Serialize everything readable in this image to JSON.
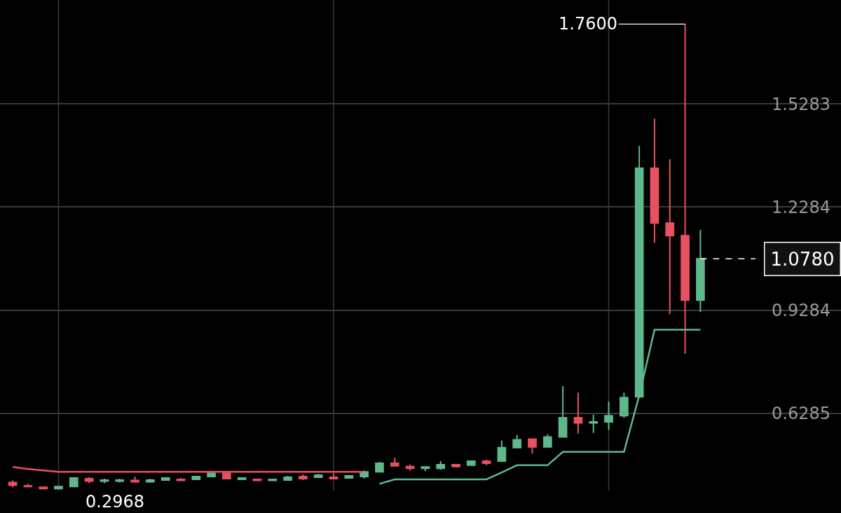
{
  "chart_data": {
    "type": "candlestick",
    "categories": [
      null,
      null,
      null,
      null,
      null,
      null,
      null,
      null,
      null,
      null,
      null,
      null,
      null,
      null,
      null,
      null,
      null,
      null,
      null,
      null,
      null,
      null,
      null,
      null,
      null,
      null,
      null,
      null,
      null,
      null,
      null,
      null,
      null,
      null,
      null,
      null,
      null,
      null,
      null,
      null,
      null,
      null,
      null,
      null,
      null,
      null
    ],
    "ohlc": [
      [
        0.428,
        0.434,
        0.414,
        0.42
      ],
      [
        0.418,
        0.424,
        0.414,
        0.416
      ],
      [
        0.414,
        0.416,
        0.408,
        0.41
      ],
      [
        0.41,
        0.418,
        0.408,
        0.416
      ],
      [
        0.416,
        0.443,
        0.414,
        0.441
      ],
      [
        0.439,
        0.443,
        0.426,
        0.432
      ],
      [
        0.432,
        0.439,
        0.426,
        0.435
      ],
      [
        0.432,
        0.439,
        0.428,
        0.435
      ],
      [
        0.434,
        0.445,
        0.43,
        0.43
      ],
      [
        0.43,
        0.439,
        0.428,
        0.435
      ],
      [
        0.435,
        0.443,
        0.434,
        0.441
      ],
      [
        0.437,
        0.441,
        0.432,
        0.434
      ],
      [
        0.437,
        0.447,
        0.435,
        0.445
      ],
      [
        0.445,
        0.457,
        0.443,
        0.455
      ],
      [
        0.455,
        0.457,
        0.437,
        0.439
      ],
      [
        0.437,
        0.443,
        0.435,
        0.441
      ],
      [
        0.437,
        0.439,
        0.432,
        0.434
      ],
      [
        0.434,
        0.439,
        0.432,
        0.437
      ],
      [
        0.435,
        0.447,
        0.434,
        0.443
      ],
      [
        0.445,
        0.451,
        0.435,
        0.439
      ],
      [
        0.443,
        0.453,
        0.441,
        0.449
      ],
      [
        0.443,
        0.455,
        0.437,
        0.439
      ],
      [
        0.441,
        0.449,
        0.439,
        0.447
      ],
      [
        0.445,
        0.463,
        0.439,
        0.459
      ],
      [
        0.459,
        0.488,
        0.457,
        0.484
      ],
      [
        0.484,
        0.5,
        0.476,
        0.476
      ],
      [
        0.474,
        0.48,
        0.463,
        0.469
      ],
      [
        0.469,
        0.473,
        0.461,
        0.473
      ],
      [
        0.469,
        0.49,
        0.465,
        0.48
      ],
      [
        0.48,
        0.482,
        0.473,
        0.474
      ],
      [
        0.478,
        0.492,
        0.476,
        0.49
      ],
      [
        0.49,
        0.494,
        0.478,
        0.484
      ],
      [
        0.49,
        0.55,
        0.488,
        0.529
      ],
      [
        0.529,
        0.566,
        0.527,
        0.552
      ],
      [
        0.554,
        0.554,
        0.512,
        0.531
      ],
      [
        0.531,
        0.568,
        0.529,
        0.56
      ],
      [
        0.56,
        0.708,
        0.558,
        0.616
      ],
      [
        0.616,
        0.689,
        0.57,
        0.601
      ],
      [
        0.601,
        0.625,
        0.572,
        0.604
      ],
      [
        0.604,
        0.663,
        0.581,
        0.622
      ],
      [
        0.622,
        0.689,
        0.616,
        0.675
      ],
      [
        0.677,
        1.406,
        0.677,
        1.341
      ],
      [
        1.341,
        1.485,
        1.125,
        1.182
      ],
      [
        1.182,
        1.367,
        0.917,
        1.145
      ],
      [
        1.145,
        1.76,
        0.802,
        0.958
      ],
      [
        0.958,
        1.162,
        0.923,
        1.078
      ]
    ],
    "colors": [
      "#e8515f",
      "#e8515f",
      "#e8515f",
      "#5fb88c",
      "#5fb88c",
      "#e8515f",
      "#5fb88c",
      "#5fb88c",
      "#e8515f",
      "#5fb88c",
      "#5fb88c",
      "#e8515f",
      "#5fb88c",
      "#5fb88c",
      "#e8515f",
      "#5fb88c",
      "#e8515f",
      "#5fb88c",
      "#5fb88c",
      "#e8515f",
      "#5fb88c",
      "#e8515f",
      "#5fb88c",
      "#5fb88c",
      "#5fb88c",
      "#e8515f",
      "#e8515f",
      "#5fb88c",
      "#5fb88c",
      "#e8515f",
      "#5fb88c",
      "#e8515f",
      "#5fb88c",
      "#5fb88c",
      "#e8515f",
      "#5fb88c",
      "#5fb88c",
      "#e8515f",
      "#5fb88c",
      "#5fb88c",
      "#5fb88c",
      "#5fb88c",
      "#e8515f",
      "#e8515f",
      "#e8515f",
      "#5fb88c"
    ],
    "series": [
      {
        "type": "line",
        "color": "#e8515f",
        "values": [
          0.473,
          0.467,
          0.463,
          0.459,
          0.459,
          0.459,
          0.459,
          0.459,
          0.459,
          0.459,
          0.459,
          0.459,
          0.459,
          0.459,
          0.459,
          0.459,
          0.459,
          0.459,
          0.459,
          0.459,
          0.459,
          0.459,
          0.459,
          0.459,
          null,
          null,
          null,
          null,
          null,
          null,
          null,
          null,
          null,
          null,
          null,
          null,
          null,
          null,
          null,
          null,
          null,
          null,
          null,
          null,
          null,
          null
        ]
      },
      {
        "type": "line",
        "color": "#5fb88c",
        "values": [
          null,
          null,
          null,
          null,
          null,
          null,
          null,
          null,
          null,
          null,
          null,
          null,
          null,
          null,
          null,
          null,
          null,
          null,
          null,
          null,
          null,
          null,
          null,
          null,
          0.424,
          0.437,
          0.437,
          0.437,
          0.437,
          0.437,
          0.437,
          0.437,
          0.457,
          0.478,
          0.478,
          0.478,
          0.517,
          0.517,
          0.517,
          0.517,
          0.517,
          0.681,
          0.872,
          0.872,
          0.872,
          0.872
        ]
      }
    ],
    "ylim": [
      0.4044,
      1.83
    ],
    "yticks": [
      0.6285,
      0.9284,
      1.2284,
      1.5283
    ],
    "ref_lines": [
      {
        "axis": "y",
        "value": 1.078,
        "label": "1.0780",
        "color": "#ffffff",
        "line_style": "dashed"
      }
    ],
    "annotations": [
      "1.7600",
      "0.2968"
    ],
    "tick_labels": "y",
    "grid": true,
    "marker": "none"
  }
}
